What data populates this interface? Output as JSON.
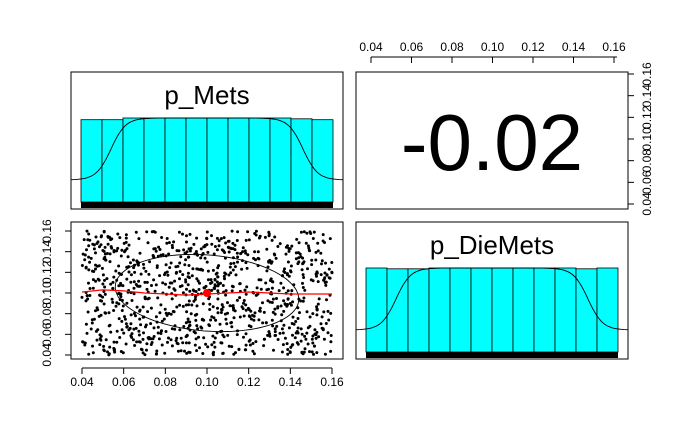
{
  "chart_data": {
    "type": "scatter",
    "variables": [
      "p_Mets",
      "p_DieMets"
    ],
    "axis_range": [
      0.04,
      0.16
    ],
    "ticks": [
      0.04,
      0.06,
      0.08,
      0.1,
      0.12,
      0.14,
      0.16
    ],
    "tick_labels": [
      "0.04",
      "0.06",
      "0.08",
      "0.10",
      "0.12",
      "0.14",
      "0.16"
    ],
    "correlation": "-0.02",
    "scatter": {
      "n_points": 1000,
      "mean_point": {
        "x": 0.1,
        "y": 0.1
      },
      "loess_color": "#ff0000",
      "point_color": "#000000",
      "mean_color": "#ff0000"
    },
    "histograms": [
      {
        "name": "p_Mets",
        "bin_edges": [
          0.04,
          0.05,
          0.06,
          0.07,
          0.08,
          0.09,
          0.1,
          0.11,
          0.12,
          0.13,
          0.14,
          0.15,
          0.16
        ],
        "relative_heights": [
          0.98,
          0.98,
          1.0,
          1.0,
          1.0,
          1.0,
          1.0,
          1.0,
          1.0,
          1.0,
          0.99,
          0.98
        ],
        "fill": "#00ffff"
      },
      {
        "name": "p_DieMets",
        "bin_edges": [
          0.04,
          0.05,
          0.06,
          0.07,
          0.08,
          0.09,
          0.1,
          0.11,
          0.12,
          0.13,
          0.14,
          0.15,
          0.16
        ],
        "relative_heights": [
          1.0,
          0.99,
          0.99,
          1.0,
          1.0,
          1.0,
          1.0,
          1.0,
          1.0,
          1.0,
          0.99,
          1.0
        ],
        "fill": "#00ffff"
      }
    ]
  }
}
